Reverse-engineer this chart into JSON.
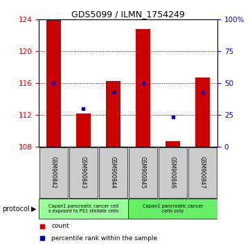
{
  "title": "GDS5099 / ILMN_1754249",
  "categories": [
    "GSM900842",
    "GSM900843",
    "GSM900844",
    "GSM900845",
    "GSM900846",
    "GSM900847"
  ],
  "count_values": [
    124.0,
    112.2,
    116.3,
    122.8,
    108.7,
    116.7
  ],
  "count_base": 108.0,
  "percentile_values": [
    116.0,
    112.8,
    114.9,
    116.0,
    111.8,
    114.9
  ],
  "ylim": [
    108,
    124
  ],
  "yticks": [
    108,
    112,
    116,
    120,
    124
  ],
  "y2ticks": [
    0,
    25,
    50,
    75,
    100
  ],
  "y2labels": [
    "0",
    "25",
    "50",
    "75",
    "100%"
  ],
  "bar_color": "#cc0000",
  "percentile_color": "#0000cc",
  "bar_width": 0.5,
  "group1_label": "Capan1 pancreatic cancer cell\ns exposed to PS1 stellate cells",
  "group2_label": "Capan1 pancreatic cancer\ncells only",
  "group1_color": "#99ff99",
  "group2_color": "#66ee66",
  "legend_items": [
    {
      "color": "#cc0000",
      "label": "count"
    },
    {
      "color": "#0000cc",
      "label": "percentile rank within the sample"
    }
  ],
  "protocol_label": "protocol",
  "bg_color": "#ffffff",
  "plot_bg": "#ffffff",
  "tick_color_left": "#cc0000",
  "tick_color_right": "#0000cc"
}
